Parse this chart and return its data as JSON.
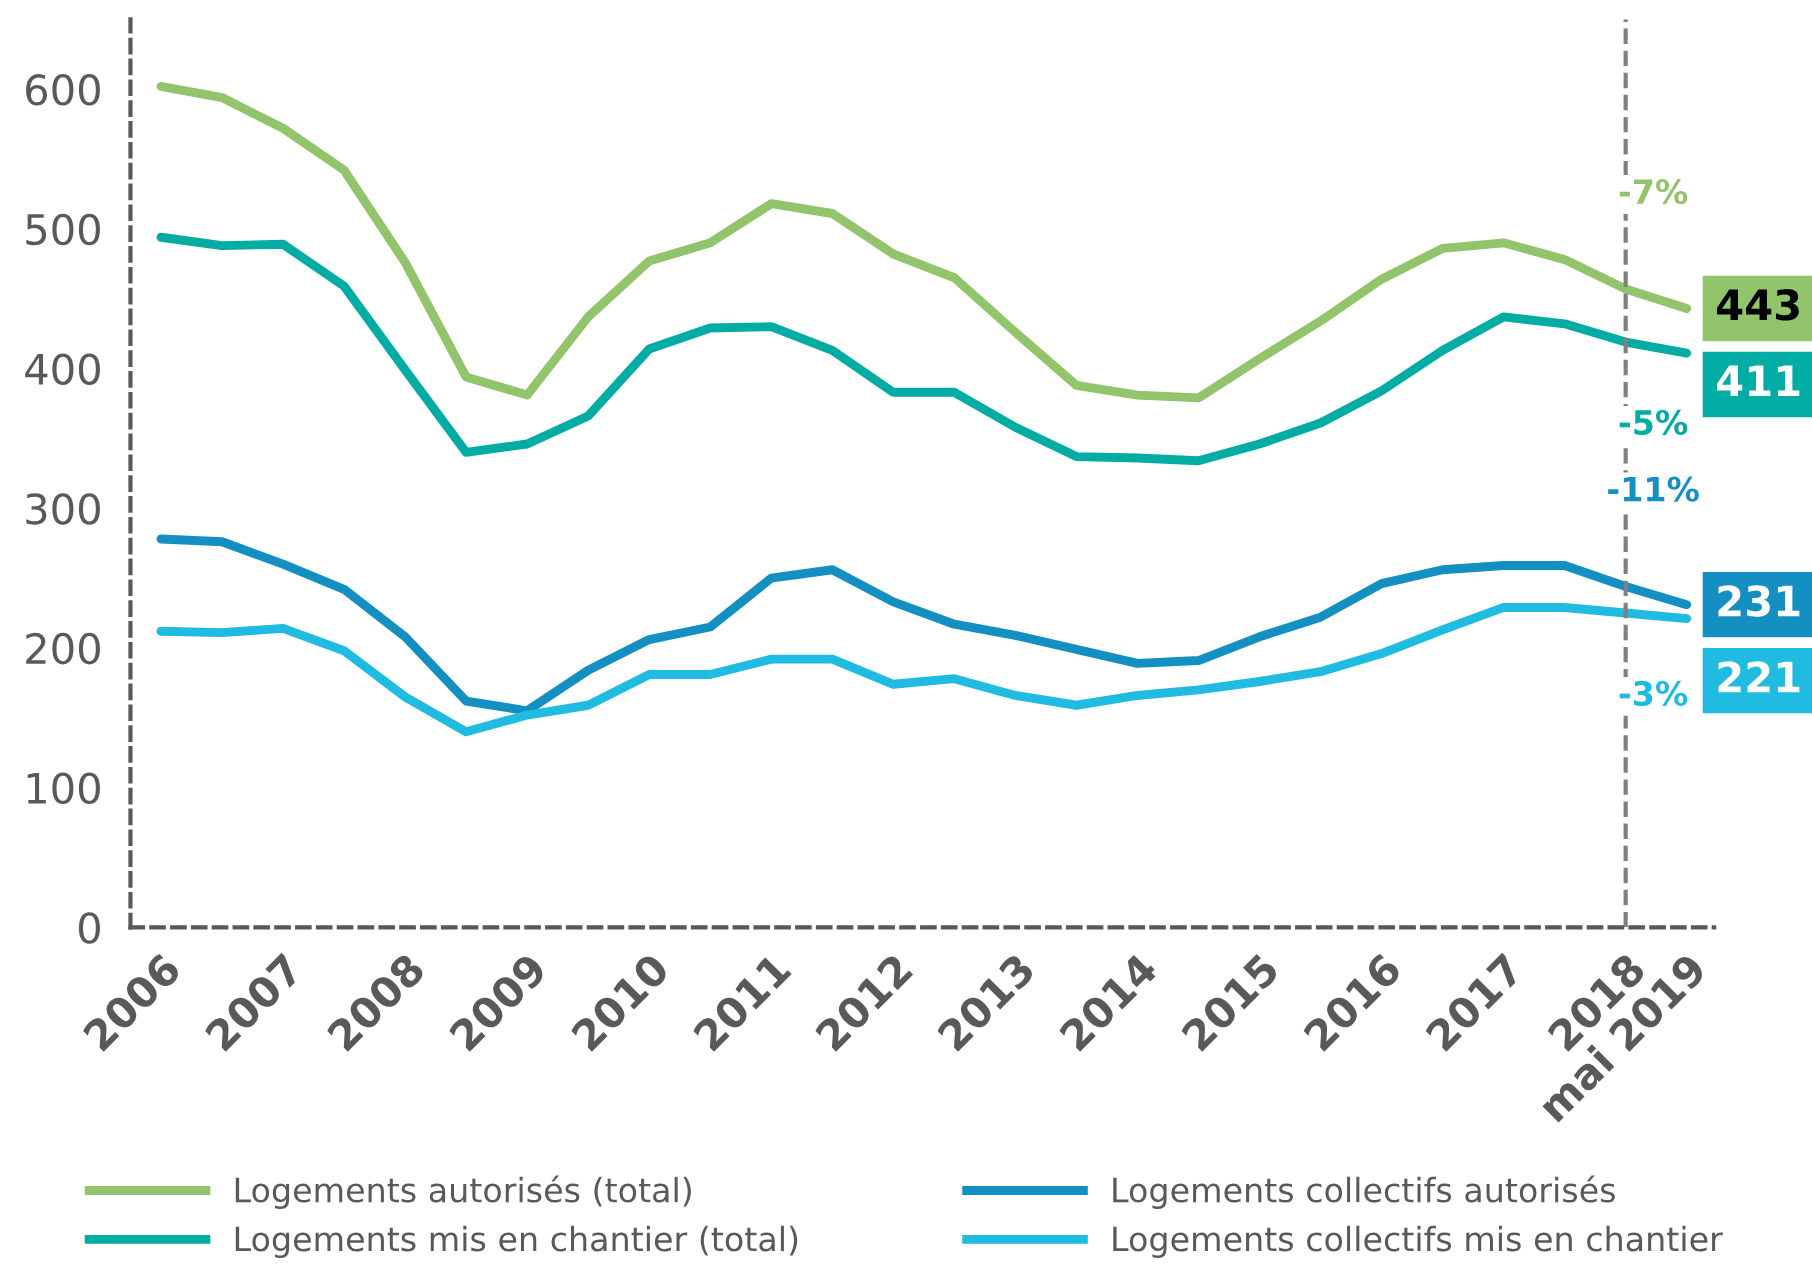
{
  "chart_data": {
    "type": "line",
    "categories": [
      "2006",
      null,
      "2007",
      null,
      "2008",
      null,
      "2009",
      null,
      "2010",
      null,
      "2011",
      null,
      "2012",
      null,
      "2013",
      null,
      "2014",
      null,
      "2015",
      null,
      "2016",
      null,
      "2017",
      null,
      "2018",
      "mai 2019"
    ],
    "series": [
      {
        "name": "Logements autorisés (total)",
        "color": "#92c46c",
        "values": [
          602,
          594,
          572,
          542,
          476,
          394,
          381,
          437,
          477,
          490,
          518,
          511,
          482,
          465,
          426,
          388,
          381,
          379,
          407,
          434,
          464,
          486,
          490,
          478,
          457,
          443
        ],
        "value_labels": [
          null,
          null,
          null,
          null,
          null,
          null,
          null,
          null,
          null,
          null,
          null,
          null,
          null,
          null,
          null,
          null,
          null,
          null,
          null,
          null,
          null,
          null,
          null,
          null,
          null,
          "443"
        ]
      },
      {
        "name": "Logements mis en chantier (total)",
        "color": "#00aca3",
        "values": [
          494,
          488,
          489,
          459,
          399,
          340,
          346,
          366,
          414,
          429,
          430,
          413,
          383,
          383,
          358,
          337,
          336,
          334,
          346,
          361,
          384,
          413,
          437,
          432,
          419,
          411
        ],
        "value_labels": [
          null,
          null,
          null,
          null,
          null,
          null,
          null,
          null,
          null,
          null,
          null,
          null,
          null,
          null,
          null,
          null,
          null,
          null,
          null,
          null,
          null,
          null,
          null,
          null,
          null,
          "411"
        ]
      },
      {
        "name": "Logements collectifs autorisés",
        "color": "#148fc1",
        "values": [
          278,
          276,
          260,
          242,
          208,
          162,
          155,
          184,
          206,
          215,
          250,
          256,
          233,
          217,
          209,
          199,
          189,
          191,
          208,
          222,
          246,
          256,
          259,
          259,
          244,
          231
        ],
        "value_labels": [
          null,
          null,
          null,
          null,
          null,
          null,
          null,
          null,
          null,
          null,
          null,
          null,
          null,
          null,
          null,
          null,
          null,
          null,
          null,
          null,
          null,
          null,
          null,
          null,
          null,
          "231"
        ]
      },
      {
        "name": "Logements collectifs mis en chantier",
        "color": "#1fbbe0",
        "values": [
          212,
          211,
          214,
          198,
          165,
          140,
          152,
          159,
          181,
          181,
          192,
          192,
          174,
          178,
          166,
          159,
          166,
          170,
          176,
          183,
          196,
          213,
          229,
          229,
          225,
          221
        ],
        "value_labels": [
          null,
          null,
          null,
          null,
          null,
          null,
          null,
          null,
          null,
          null,
          null,
          null,
          null,
          null,
          null,
          null,
          null,
          null,
          null,
          null,
          null,
          null,
          null,
          null,
          null,
          "221"
        ]
      }
    ],
    "annotations": [
      "-7%",
      "-5%",
      "-11%",
      "-3%"
    ],
    "ref_lines": [
      {
        "axis": "x",
        "value": "2018",
        "color": "#808080",
        "line_style": "dashed"
      }
    ],
    "ylim": [
      0,
      650
    ],
    "yticks": [
      0,
      100,
      200,
      300,
      400,
      500,
      600
    ],
    "grid": false,
    "legend": "bottom",
    "marker": "none",
    "line_style": "solid"
  }
}
